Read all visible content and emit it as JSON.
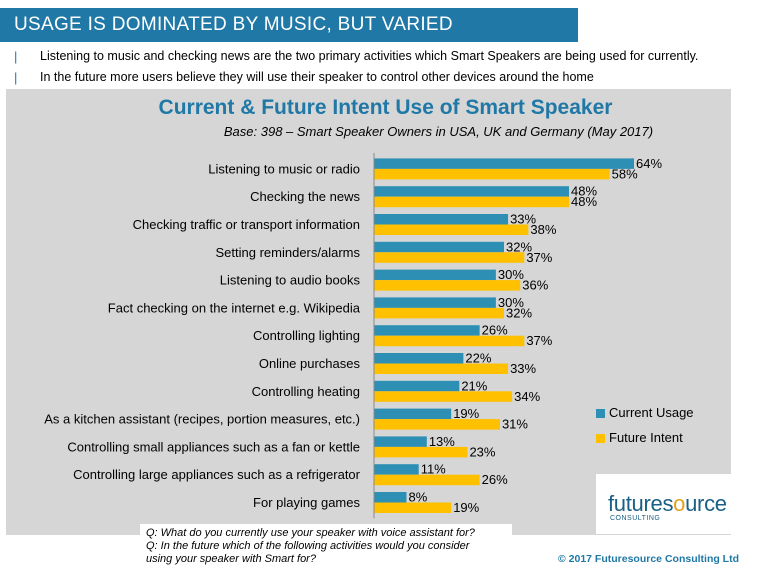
{
  "header": {
    "title": "USAGE IS DOMINATED BY MUSIC, BUT VARIED"
  },
  "bullets": [
    "Listening to music and checking news are the two primary activities which Smart Speakers are being used for currently.",
    "In the future more users believe they will use their speaker to control other devices around the home"
  ],
  "bullet_mark": "|",
  "colors": {
    "current": "#2e8fb4",
    "future": "#ffc000",
    "accent": "#1f78a6"
  },
  "chart_data": {
    "type": "bar",
    "orientation": "horizontal",
    "title": "Current & Future Intent Use of Smart Speaker",
    "subtitle": "Base: 398 – Smart Speaker Owners in USA, UK and Germany (May 2017)",
    "categories": [
      "Listening to music or radio",
      "Checking the news",
      "Checking traffic or transport information",
      "Setting reminders/alarms",
      "Listening to audio books",
      "Fact checking on the internet e.g. Wikipedia",
      "Controlling lighting",
      "Online purchases",
      "Controlling heating",
      "As a kitchen assistant (recipes, portion measures, etc.)",
      "Controlling small appliances such as a fan or kettle",
      "Controlling large appliances such as a refrigerator",
      "For playing games"
    ],
    "series": [
      {
        "name": "Current Usage",
        "values": [
          64,
          48,
          33,
          32,
          30,
          30,
          26,
          22,
          21,
          19,
          13,
          11,
          8
        ]
      },
      {
        "name": "Future Intent",
        "values": [
          58,
          48,
          38,
          37,
          36,
          32,
          37,
          33,
          34,
          31,
          23,
          26,
          19
        ]
      }
    ],
    "value_suffix": "%",
    "xlim": [
      0,
      64
    ],
    "grid": false,
    "legend_position": "bottom-right"
  },
  "logo": {
    "pre": "futures",
    "o": "o",
    "post": "urce",
    "sub": "CONSULTING"
  },
  "footnote": {
    "q1": "Q: What do you currently use your speaker with voice assistant for?",
    "q2": "Q: In the future which of the following activities would you consider",
    "q3": "using your speaker with Smart for?"
  },
  "copyright": "© 2017 Futuresource Consulting Ltd"
}
